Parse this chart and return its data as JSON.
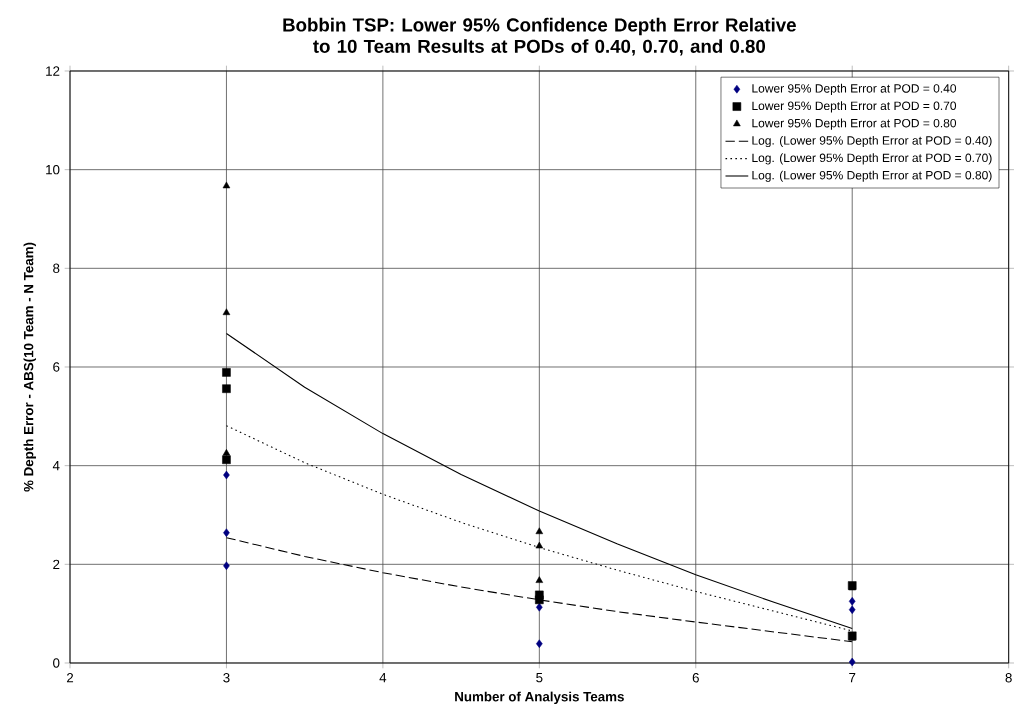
{
  "chart_data": {
    "type": "scatter",
    "title": "Bobbin TSP: Lower 95% Confidence Depth Error Relative to 10 Team Results at PODs of 0.40, 0.70, and 0.80",
    "xlabel": "Number of Analysis Teams",
    "ylabel": "% Depth Error - ABS(10 Team - N Team)",
    "xlim": [
      2,
      8
    ],
    "ylim": [
      0,
      12
    ],
    "xticks": [
      2,
      3,
      4,
      5,
      6,
      7,
      8
    ],
    "yticks": [
      0,
      2,
      4,
      6,
      8,
      10,
      12
    ],
    "grid": true,
    "legend": "top right",
    "series": [
      {
        "name": "Lower 95% Depth Error at POD = 0.40",
        "marker": "diamond",
        "color": "#000080",
        "x": [
          3,
          3,
          3,
          5,
          5,
          7,
          7,
          7
        ],
        "values": [
          3.81,
          2.64,
          1.97,
          1.13,
          0.39,
          1.25,
          1.08,
          0.02
        ]
      },
      {
        "name": "Lower 95% Depth Error at POD = 0.70",
        "marker": "square",
        "color": "#000000",
        "x": [
          3,
          3,
          3,
          5,
          5,
          7,
          7
        ],
        "values": [
          5.89,
          5.56,
          4.12,
          1.38,
          1.28,
          1.57,
          0.55
        ]
      },
      {
        "name": "Lower 95% Depth Error at POD = 0.80",
        "marker": "triangle",
        "color": "#000000",
        "x": [
          3,
          3,
          3,
          5,
          5,
          5,
          7,
          7
        ],
        "values": [
          9.67,
          7.1,
          4.25,
          2.66,
          2.37,
          1.67,
          1.52,
          0.5
        ]
      },
      {
        "name": "Log. (Lower 95% Depth Error at POD = 0.40)",
        "type": "line",
        "line_style": "dashed",
        "color": "#000000",
        "x": [
          3,
          3.5,
          4,
          4.5,
          5,
          5.5,
          6,
          6.5,
          7
        ],
        "values": [
          2.54,
          2.16,
          1.83,
          1.54,
          1.28,
          1.04,
          0.83,
          0.63,
          0.43
        ]
      },
      {
        "name": "Log. (Lower 95% Depth Error at POD = 0.70)",
        "type": "line",
        "line_style": "dotted",
        "color": "#000000",
        "x": [
          3,
          3.5,
          4,
          4.5,
          5,
          5.5,
          6,
          6.5,
          7
        ],
        "values": [
          4.81,
          4.06,
          3.42,
          2.85,
          2.34,
          1.88,
          1.45,
          1.05,
          0.65
        ]
      },
      {
        "name": "Log. (Lower 95% Depth Error at POD = 0.80)",
        "type": "line",
        "line_style": "solid",
        "color": "#000000",
        "x": [
          3,
          3.5,
          4,
          4.5,
          5,
          5.5,
          6,
          6.5,
          7
        ],
        "values": [
          6.68,
          5.59,
          4.65,
          3.82,
          3.08,
          2.41,
          1.79,
          1.23,
          0.7
        ]
      }
    ]
  }
}
